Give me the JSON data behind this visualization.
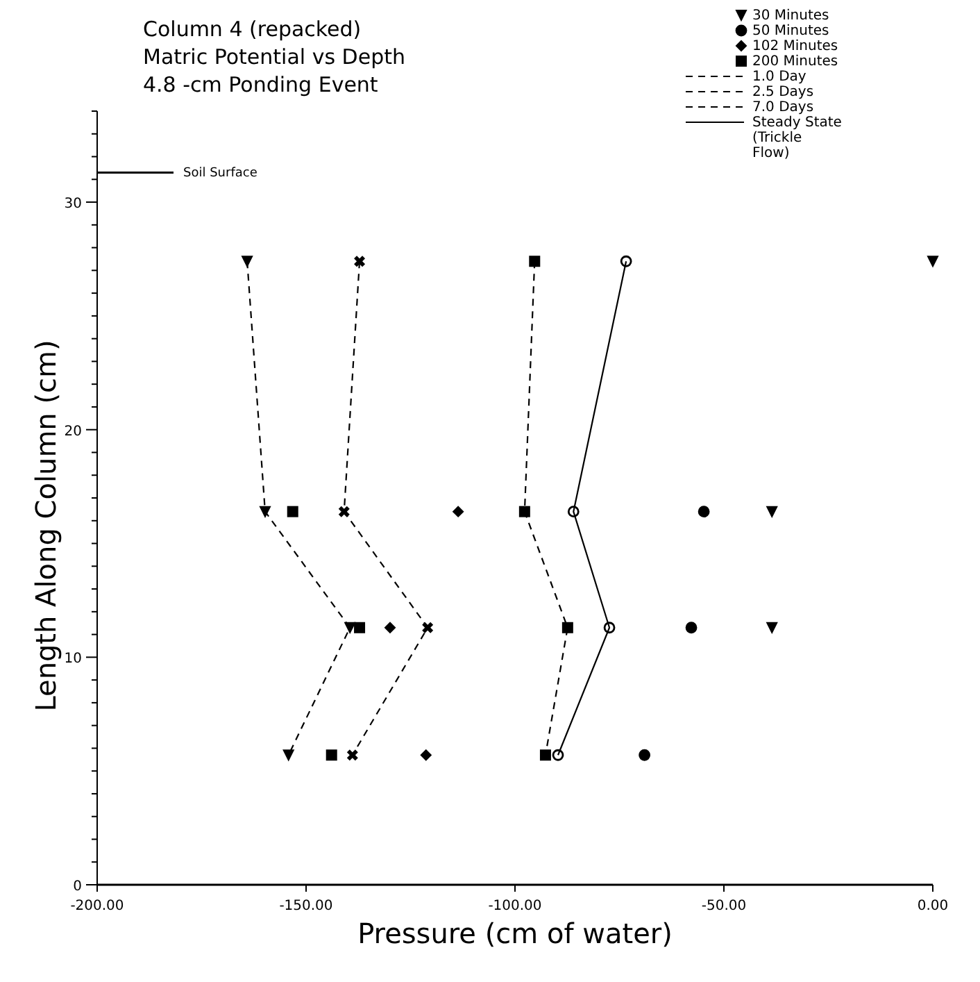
{
  "chart_data": {
    "type": "line",
    "title": "Column 4 (repacked)",
    "subtitle": "Matric Potential vs Depth\n4.8 -cm Ponding Event",
    "xlabel": "Pressure (cm of water)",
    "ylabel": "Length Along Column (cm)",
    "xlim": [
      -200,
      0
    ],
    "xticks": [
      {
        "value": -200,
        "label": "-200.00"
      },
      {
        "value": -150,
        "label": "-150.00"
      },
      {
        "value": -100,
        "label": "-100.00"
      },
      {
        "value": -50,
        "label": "-50.00"
      },
      {
        "value": 0,
        "label": "0.00"
      }
    ],
    "ylim": [
      0,
      34
    ],
    "yticks": [
      0,
      {
        "value": 1,
        "label": null
      },
      {
        "value": 2,
        "label": null
      },
      {
        "value": 3,
        "label": null
      },
      {
        "value": 4,
        "label": null
      },
      {
        "value": 5,
        "label": null
      },
      {
        "value": 6,
        "label": null
      },
      {
        "value": 7,
        "label": null
      },
      {
        "value": 8,
        "label": null
      },
      {
        "value": 9,
        "label": null
      },
      10,
      {
        "value": 11,
        "label": null
      },
      {
        "value": 12,
        "label": null
      },
      {
        "value": 13,
        "label": null
      },
      {
        "value": 14,
        "label": null
      },
      {
        "value": 15,
        "label": null
      },
      {
        "value": 16,
        "label": null
      },
      {
        "value": 17,
        "label": null
      },
      {
        "value": 18,
        "label": null
      },
      {
        "value": 19,
        "label": null
      },
      20,
      {
        "value": 21,
        "label": null
      },
      {
        "value": 22,
        "label": null
      },
      {
        "value": 23,
        "label": null
      },
      {
        "value": 24,
        "label": null
      },
      {
        "value": 25,
        "label": null
      },
      {
        "value": 26,
        "label": null
      },
      {
        "value": 27,
        "label": null
      },
      {
        "value": 28,
        "label": null
      },
      {
        "value": 29,
        "label": null
      },
      30,
      {
        "value": 31,
        "label": null
      },
      {
        "value": 32,
        "label": null
      },
      {
        "value": 33,
        "label": null
      },
      {
        "value": 34,
        "label": null
      }
    ],
    "grid": false,
    "legend": "top right",
    "ref_lines": [
      {
        "axis": "y",
        "value": 31.3,
        "label": "Soil Surface",
        "color": "#000000"
      }
    ],
    "series": [
      {
        "name": "30 Minutes",
        "type": "scatter",
        "marker": "triangle",
        "color": "#000000",
        "x": [
          0,
          -38.5,
          -38.5
        ],
        "values": [
          27.4,
          16.4,
          11.3
        ]
      },
      {
        "name": "50 Minutes",
        "type": "scatter",
        "marker": "circle",
        "color": "#000000",
        "x": [
          -54.8,
          -57.8,
          -69
        ],
        "values": [
          16.4,
          11.3,
          5.7
        ]
      },
      {
        "name": "102 Minutes",
        "type": "scatter",
        "marker": "diamond",
        "color": "#000000",
        "x": [
          -113.6,
          -129.9,
          -121.3
        ],
        "values": [
          16.4,
          11.3,
          5.7
        ]
      },
      {
        "name": "200 Minutes",
        "type": "scatter",
        "marker": "square",
        "color": "#000000",
        "x": [
          -153.2,
          -137.2,
          -143.9
        ],
        "values": [
          16.4,
          11.3,
          5.7
        ]
      },
      {
        "name": "1.0 Day",
        "marker": "square",
        "line_style": "dashed",
        "color": "#000000",
        "x": [
          -95.3,
          -97.7,
          -87.4,
          -92.7
        ],
        "values": [
          27.4,
          16.4,
          11.3,
          5.7
        ]
      },
      {
        "name": "2.5 Days",
        "marker": "cross",
        "line_style": "dashed",
        "color": "#000000",
        "x": [
          -137.2,
          -140.9,
          -120.9,
          -138.9
        ],
        "values": [
          27.4,
          16.4,
          11.3,
          5.7
        ]
      },
      {
        "name": "7.0 Days",
        "marker": "triangle",
        "line_style": "dashed",
        "color": "#000000",
        "x": [
          -164.1,
          -159.8,
          -139.5,
          -154.2
        ],
        "values": [
          27.4,
          16.4,
          11.3,
          5.7
        ]
      },
      {
        "name": "Steady State (Trickle Flow)",
        "marker": "circle",
        "line_style": "solid",
        "color": "#000000",
        "x": [
          -73.4,
          -86,
          -77.4,
          -89.7
        ],
        "values": [
          27.4,
          16.4,
          11.3,
          5.7
        ]
      }
    ]
  }
}
